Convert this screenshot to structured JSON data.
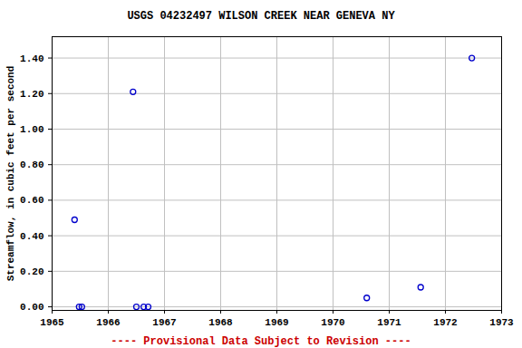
{
  "chart_data": {
    "type": "scatter",
    "title": "USGS 04232497 WILSON CREEK NEAR GENEVA NY",
    "caption": "---- Provisional Data Subject to Revision ----",
    "y_label": "Streamflow, in cubic feet per second",
    "x": [
      1965.4,
      1965.48,
      1965.53,
      1966.44,
      1966.5,
      1966.63,
      1966.71,
      1970.6,
      1971.56,
      1972.47
    ],
    "values": [
      0.49,
      0.0,
      0.0,
      1.21,
      0.0,
      0.0,
      0.0,
      0.05,
      0.11,
      1.4
    ],
    "color": "#0000cc",
    "marker": "circle",
    "xlim": [
      1965,
      1973
    ],
    "xticks": [
      1965,
      1966,
      1967,
      1968,
      1969,
      1970,
      1971,
      1972,
      1973
    ],
    "ylim": [
      -0.02,
      1.52
    ],
    "yticks": [
      {
        "value": 0,
        "label": "0.00"
      },
      {
        "value": 0.2,
        "label": "0.20"
      },
      {
        "value": 0.4,
        "label": "0.40"
      },
      {
        "value": 0.6,
        "label": "0.60"
      },
      {
        "value": 0.8,
        "label": "0.80"
      },
      {
        "value": 1.0,
        "label": "1.00"
      },
      {
        "value": 1.2,
        "label": "1.20"
      },
      {
        "value": 1.4,
        "label": "1.40"
      }
    ],
    "grid": true
  }
}
